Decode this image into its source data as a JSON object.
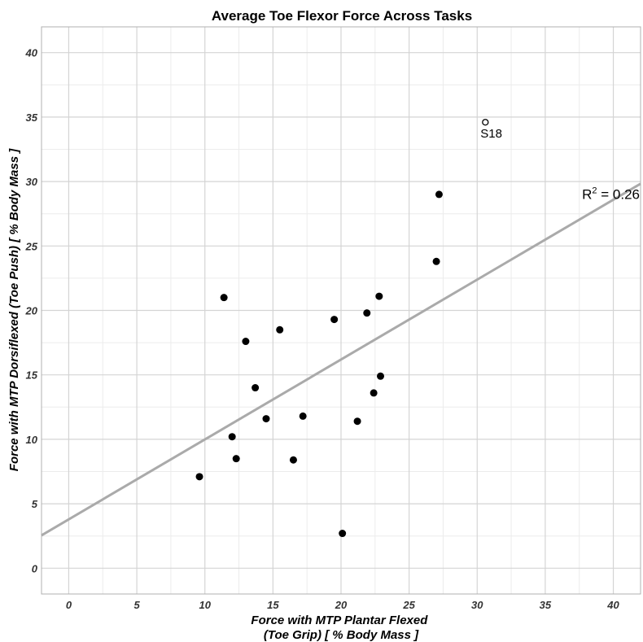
{
  "chart_data": {
    "type": "scatter",
    "title": "Average Toe Flexor Force Across Tasks",
    "xlabel_lines": [
      "Force with MTP Plantar Flexed",
      "(Toe Grip) [ % Body Mass ]"
    ],
    "ylabel": "Force with MTP Dorsiflexed (Toe Push) [ % Body Mass ]",
    "xlim": [
      -2,
      42
    ],
    "ylim": [
      -2,
      42
    ],
    "x_ticks": [
      0,
      5,
      10,
      15,
      20,
      25,
      30,
      35,
      40
    ],
    "x_tick_labels": [
      "0",
      "5",
      "10",
      "15",
      "20",
      "25",
      "30",
      "35",
      "40"
    ],
    "y_ticks": [
      0,
      5,
      10,
      15,
      20,
      25,
      30,
      35,
      40
    ],
    "y_tick_labels": [
      "0",
      "5",
      "10",
      "15",
      "20",
      "25",
      "30",
      "35",
      "40"
    ],
    "grid": true,
    "points": [
      {
        "x": 9.6,
        "y": 7.1
      },
      {
        "x": 11.4,
        "y": 21.0
      },
      {
        "x": 12.0,
        "y": 10.2
      },
      {
        "x": 12.3,
        "y": 8.5
      },
      {
        "x": 13.0,
        "y": 17.6
      },
      {
        "x": 13.7,
        "y": 14.0
      },
      {
        "x": 14.5,
        "y": 11.6
      },
      {
        "x": 15.5,
        "y": 18.5
      },
      {
        "x": 16.5,
        "y": 8.4
      },
      {
        "x": 17.2,
        "y": 11.8
      },
      {
        "x": 19.5,
        "y": 19.3
      },
      {
        "x": 20.1,
        "y": 2.7
      },
      {
        "x": 21.2,
        "y": 11.4
      },
      {
        "x": 21.9,
        "y": 19.8
      },
      {
        "x": 22.4,
        "y": 13.6
      },
      {
        "x": 22.8,
        "y": 21.1
      },
      {
        "x": 22.9,
        "y": 14.9
      },
      {
        "x": 27.0,
        "y": 23.8
      },
      {
        "x": 27.2,
        "y": 29.0
      }
    ],
    "outlier": {
      "x": 30.6,
      "y": 34.6,
      "label": "S18"
    },
    "fit_line": {
      "intercept": 3.79,
      "slope": 0.62,
      "color": "#aaaaaa"
    },
    "r2_label": {
      "base": "R",
      "sup": "2",
      "rest": " = 0.26"
    },
    "colors": {
      "points": "#000000",
      "grid_major": "#d4d4d4",
      "grid_minor": "#ececec",
      "panel_border": "#b0b0b0"
    }
  }
}
